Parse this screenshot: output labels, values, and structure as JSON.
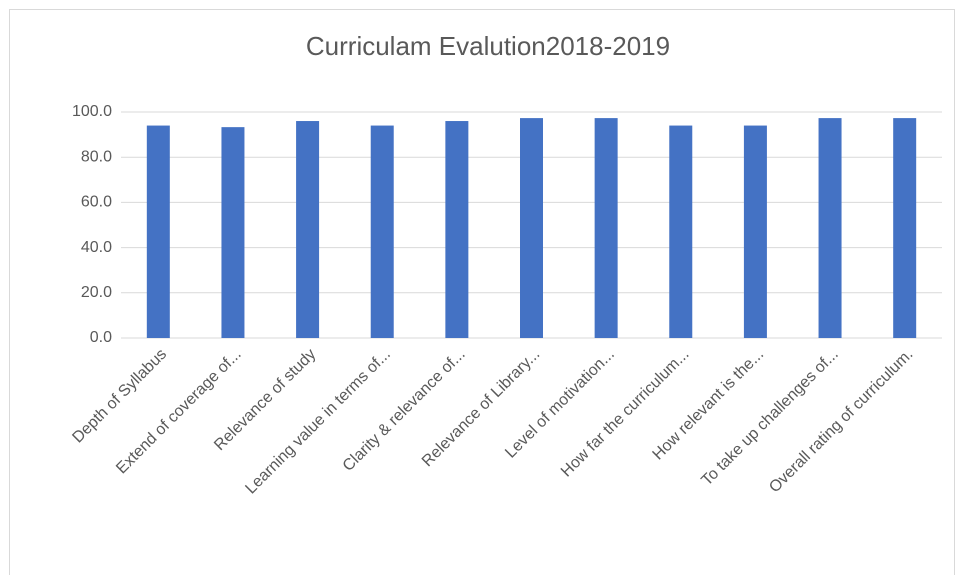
{
  "chart_data": {
    "type": "bar",
    "title": "Curriculam Evalution2018-2019",
    "categories": [
      "Depth of Syllabus",
      "Extend of coverage of...",
      "Relevance of study",
      "Learning value in terms of...",
      "Clarity & relevance of...",
      "Relevance of Library...",
      "Level of motivation...",
      "How far the curriculum...",
      "How relevant is the...",
      "To take up challenges of...",
      "Overall rating of curriculum."
    ],
    "values": [
      94,
      93.3,
      96,
      94,
      96,
      97.3,
      97.3,
      94,
      94,
      97.3,
      97.3
    ],
    "color": "#4472c4",
    "ylim": [
      0,
      100
    ],
    "yticks": [
      {
        "value": 0,
        "label": "0.0"
      },
      {
        "value": 20,
        "label": "20.0"
      },
      {
        "value": 40,
        "label": "40.0"
      },
      {
        "value": 60,
        "label": "60.0"
      },
      {
        "value": 80,
        "label": "80.0"
      },
      {
        "value": 100,
        "label": "100.0"
      }
    ],
    "grid": true
  }
}
